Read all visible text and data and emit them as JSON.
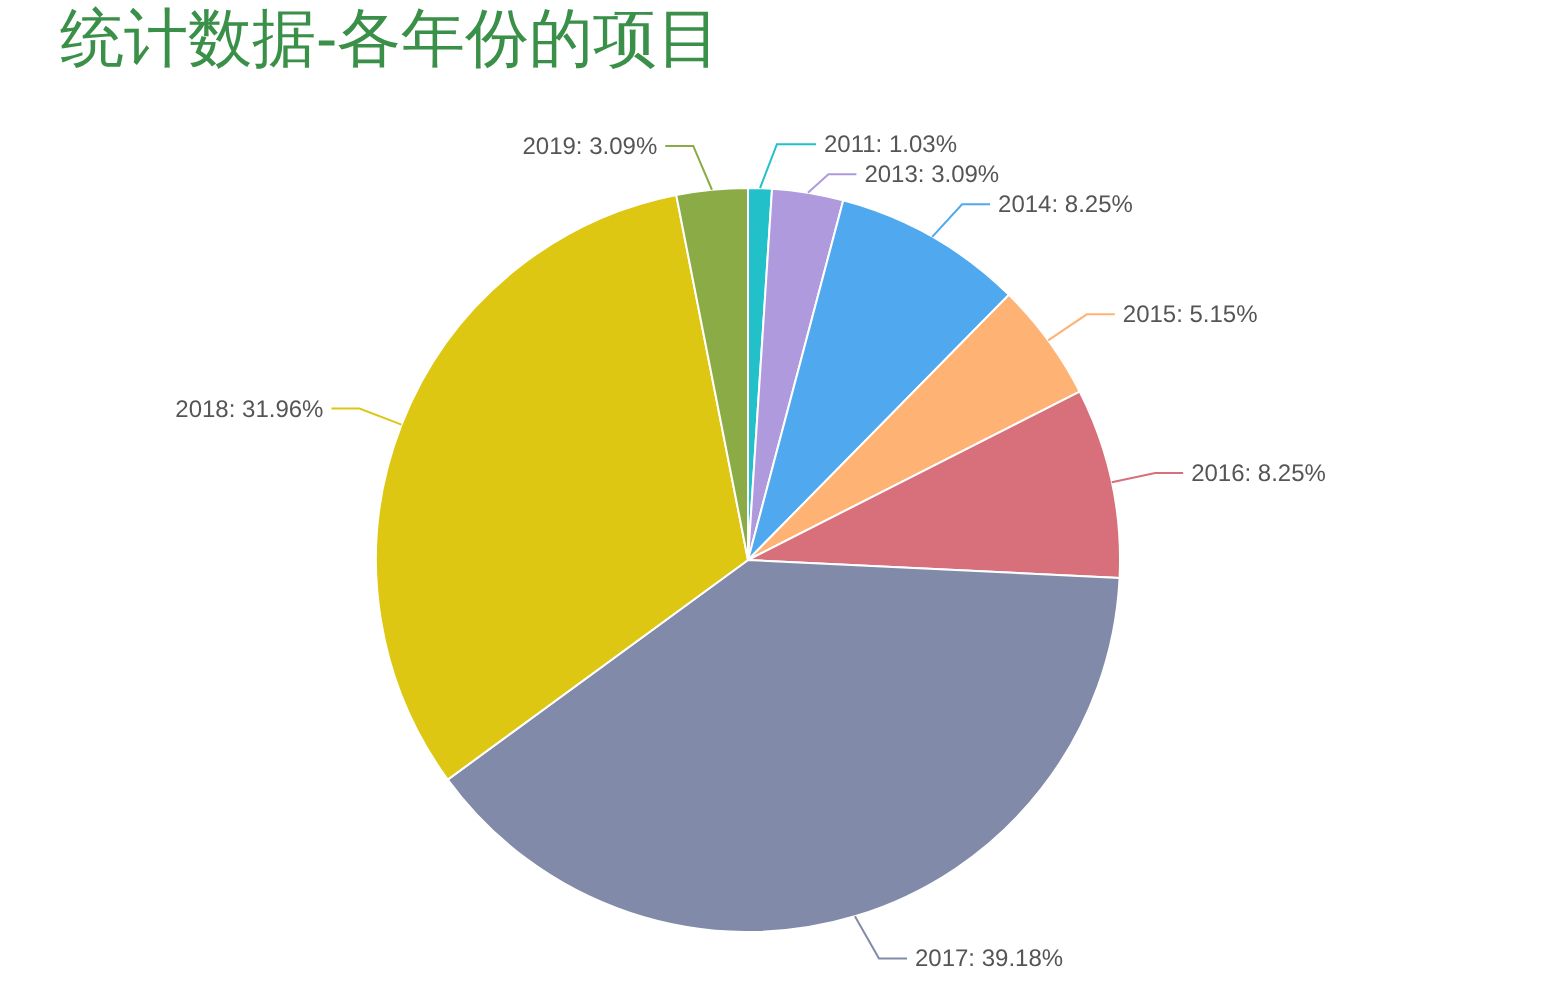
{
  "chart_data": {
    "type": "pie",
    "title": "统计数据-各年份的项目",
    "categories": [
      "2011",
      "2013",
      "2014",
      "2015",
      "2016",
      "2017",
      "2018",
      "2019"
    ],
    "values": [
      1.03,
      3.09,
      8.25,
      5.15,
      8.25,
      39.18,
      31.96,
      3.09
    ],
    "value_labels": [
      "1.03%",
      "3.09%",
      "8.25%",
      "5.15%",
      "8.25%",
      "39.18%",
      "31.96%",
      "3.09%"
    ],
    "colors": [
      "#22c1c9",
      "#b09ade",
      "#50a9ee",
      "#feb273",
      "#d7707a",
      "#818aa8",
      "#ddc713",
      "#8aab45"
    ]
  }
}
